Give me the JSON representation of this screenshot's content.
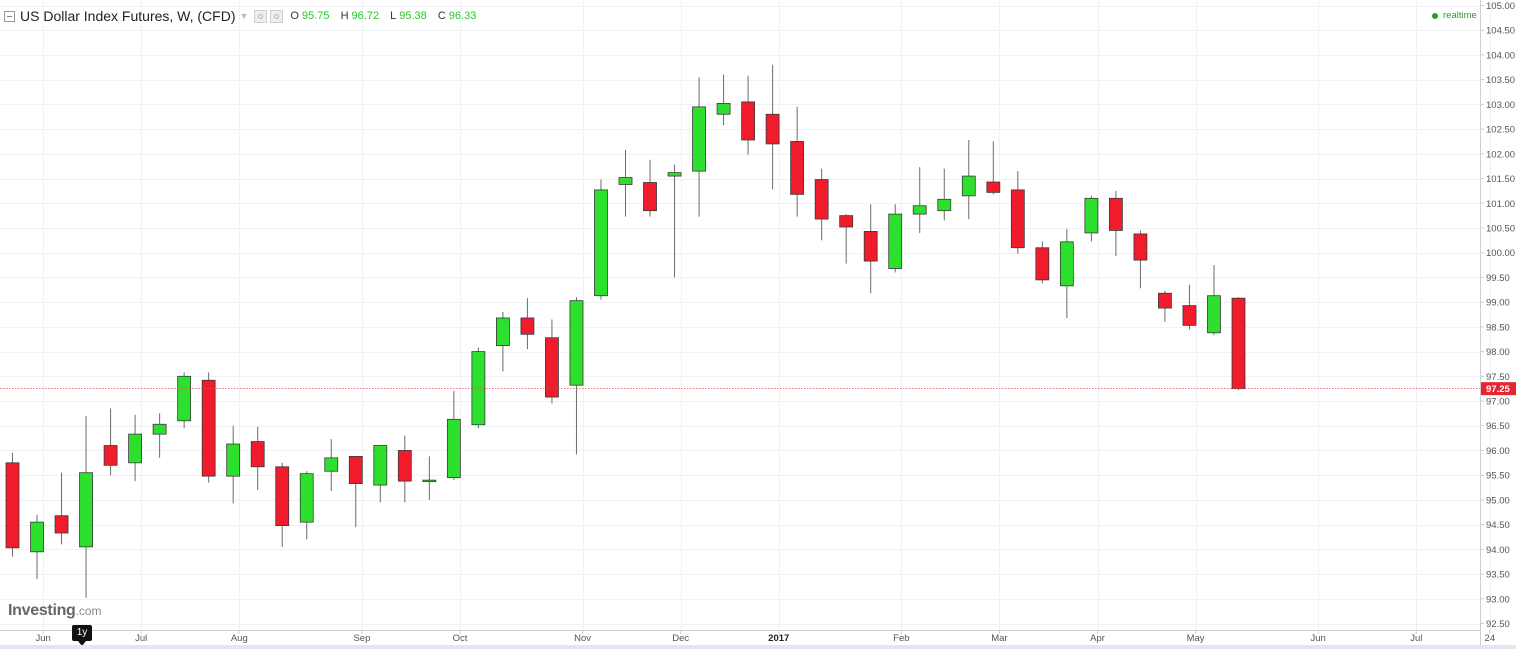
{
  "header": {
    "title": "US Dollar Index Futures, W, (CFD)",
    "ohlc": [
      {
        "key": "O",
        "value": "95.75"
      },
      {
        "key": "H",
        "value": "96.72"
      },
      {
        "key": "L",
        "value": "95.38"
      },
      {
        "key": "C",
        "value": "96.33"
      }
    ],
    "realtime_label": "realtime"
  },
  "logo": {
    "main": "Investing",
    "suffix": ".com"
  },
  "range_button": {
    "label": "1y"
  },
  "colors": {
    "up": "#2ee02e",
    "down": "#f01c2c",
    "grid": "#eef1f5",
    "axis": "#cfcfcf",
    "price_line": "#e05050",
    "price_badge": "#e8252f"
  },
  "icons": [
    "collapse-icon",
    "chevron-down-icon",
    "settings-icon",
    "close-icon",
    "realtime-dot-icon"
  ],
  "chart_data": {
    "type": "candlestick",
    "title": "US Dollar Index Futures, W, (CFD)",
    "ylim": [
      92.5,
      105.0
    ],
    "y_ticks": [
      "92.50",
      "93.00",
      "93.50",
      "94.00",
      "94.50",
      "95.00",
      "95.50",
      "96.00",
      "96.50",
      "97.00",
      "97.50",
      "98.00",
      "98.50",
      "99.00",
      "99.50",
      "100.00",
      "100.50",
      "101.00",
      "101.50",
      "102.00",
      "102.50",
      "103.00",
      "103.50",
      "104.00",
      "104.50",
      "105.00"
    ],
    "x_labels": [
      {
        "text": "Jun",
        "index": 1.25
      },
      {
        "text": "Jul",
        "index": 5.25
      },
      {
        "text": "Aug",
        "index": 9.25
      },
      {
        "text": "Sep",
        "index": 14.25
      },
      {
        "text": "Oct",
        "index": 18.25
      },
      {
        "text": "Nov",
        "index": 23.25
      },
      {
        "text": "Dec",
        "index": 27.25
      },
      {
        "text": "2017",
        "index": 31.25,
        "bold": true
      },
      {
        "text": "Feb",
        "index": 36.25
      },
      {
        "text": "Mar",
        "index": 40.25
      },
      {
        "text": "Apr",
        "index": 44.25
      },
      {
        "text": "May",
        "index": 48.25
      },
      {
        "text": "Jun",
        "index": 53.25
      },
      {
        "text": "Jul",
        "index": 57.25
      },
      {
        "text": "24",
        "index": 60.25
      }
    ],
    "current_price": "97.25",
    "candles": [
      {
        "o": 95.75,
        "h": 95.95,
        "l": 93.85,
        "c": 94.03
      },
      {
        "o": 93.95,
        "h": 94.7,
        "l": 93.4,
        "c": 94.55
      },
      {
        "o": 94.68,
        "h": 95.55,
        "l": 94.1,
        "c": 94.33
      },
      {
        "o": 94.05,
        "h": 96.7,
        "l": 93.02,
        "c": 95.55
      },
      {
        "o": 96.1,
        "h": 96.85,
        "l": 95.5,
        "c": 95.7
      },
      {
        "o": 95.75,
        "h": 96.72,
        "l": 95.38,
        "c": 96.33
      },
      {
        "o": 96.33,
        "h": 96.75,
        "l": 95.85,
        "c": 96.53
      },
      {
        "o": 96.6,
        "h": 97.58,
        "l": 96.45,
        "c": 97.5
      },
      {
        "o": 97.42,
        "h": 97.58,
        "l": 95.35,
        "c": 95.48
      },
      {
        "o": 95.48,
        "h": 96.5,
        "l": 94.93,
        "c": 96.13
      },
      {
        "o": 96.18,
        "h": 96.48,
        "l": 95.2,
        "c": 95.67
      },
      {
        "o": 95.67,
        "h": 95.75,
        "l": 94.05,
        "c": 94.48
      },
      {
        "o": 94.55,
        "h": 95.58,
        "l": 94.2,
        "c": 95.53
      },
      {
        "o": 95.58,
        "h": 96.23,
        "l": 95.18,
        "c": 95.85
      },
      {
        "o": 95.88,
        "h": 95.88,
        "l": 94.45,
        "c": 95.33
      },
      {
        "o": 95.3,
        "h": 96.1,
        "l": 94.95,
        "c": 96.1
      },
      {
        "o": 96.0,
        "h": 96.3,
        "l": 94.95,
        "c": 95.38
      },
      {
        "o": 95.38,
        "h": 95.88,
        "l": 95.0,
        "c": 95.4
      },
      {
        "o": 95.45,
        "h": 97.2,
        "l": 95.4,
        "c": 96.63
      },
      {
        "o": 96.52,
        "h": 98.08,
        "l": 96.45,
        "c": 98.0
      },
      {
        "o": 98.12,
        "h": 98.8,
        "l": 97.6,
        "c": 98.68
      },
      {
        "o": 98.68,
        "h": 99.08,
        "l": 98.05,
        "c": 98.35
      },
      {
        "o": 98.28,
        "h": 98.65,
        "l": 96.95,
        "c": 97.08
      },
      {
        "o": 97.32,
        "h": 99.1,
        "l": 95.92,
        "c": 99.03
      },
      {
        "o": 99.13,
        "h": 101.48,
        "l": 99.05,
        "c": 101.27
      },
      {
        "o": 101.38,
        "h": 102.08,
        "l": 100.73,
        "c": 101.52
      },
      {
        "o": 101.42,
        "h": 101.88,
        "l": 100.73,
        "c": 100.85
      },
      {
        "o": 101.55,
        "h": 101.78,
        "l": 99.5,
        "c": 101.62
      },
      {
        "o": 101.65,
        "h": 103.55,
        "l": 100.73,
        "c": 102.95
      },
      {
        "o": 102.8,
        "h": 103.6,
        "l": 102.58,
        "c": 103.02
      },
      {
        "o": 103.05,
        "h": 103.58,
        "l": 101.98,
        "c": 102.28
      },
      {
        "o": 102.8,
        "h": 103.8,
        "l": 101.28,
        "c": 102.2
      },
      {
        "o": 102.25,
        "h": 102.95,
        "l": 100.73,
        "c": 101.18
      },
      {
        "o": 101.48,
        "h": 101.7,
        "l": 100.25,
        "c": 100.68
      },
      {
        "o": 100.75,
        "h": 100.78,
        "l": 99.78,
        "c": 100.52
      },
      {
        "o": 100.43,
        "h": 100.98,
        "l": 99.18,
        "c": 99.83
      },
      {
        "o": 99.68,
        "h": 100.98,
        "l": 99.6,
        "c": 100.78
      },
      {
        "o": 100.78,
        "h": 101.73,
        "l": 100.4,
        "c": 100.95
      },
      {
        "o": 100.85,
        "h": 101.7,
        "l": 100.65,
        "c": 101.08
      },
      {
        "o": 101.15,
        "h": 102.28,
        "l": 100.68,
        "c": 101.55
      },
      {
        "o": 101.43,
        "h": 102.25,
        "l": 101.18,
        "c": 101.22
      },
      {
        "o": 101.27,
        "h": 101.65,
        "l": 99.98,
        "c": 100.1
      },
      {
        "o": 100.1,
        "h": 100.23,
        "l": 99.38,
        "c": 99.45
      },
      {
        "o": 99.33,
        "h": 100.48,
        "l": 98.68,
        "c": 100.22
      },
      {
        "o": 100.4,
        "h": 101.15,
        "l": 100.23,
        "c": 101.1
      },
      {
        "o": 101.1,
        "h": 101.25,
        "l": 99.93,
        "c": 100.45
      },
      {
        "o": 100.38,
        "h": 100.45,
        "l": 99.28,
        "c": 99.85
      },
      {
        "o": 99.18,
        "h": 99.23,
        "l": 98.6,
        "c": 98.88
      },
      {
        "o": 98.93,
        "h": 99.35,
        "l": 98.45,
        "c": 98.53
      },
      {
        "o": 98.38,
        "h": 99.75,
        "l": 98.33,
        "c": 99.13
      },
      {
        "o": 99.08,
        "h": 99.1,
        "l": 97.22,
        "c": 97.25
      }
    ]
  }
}
